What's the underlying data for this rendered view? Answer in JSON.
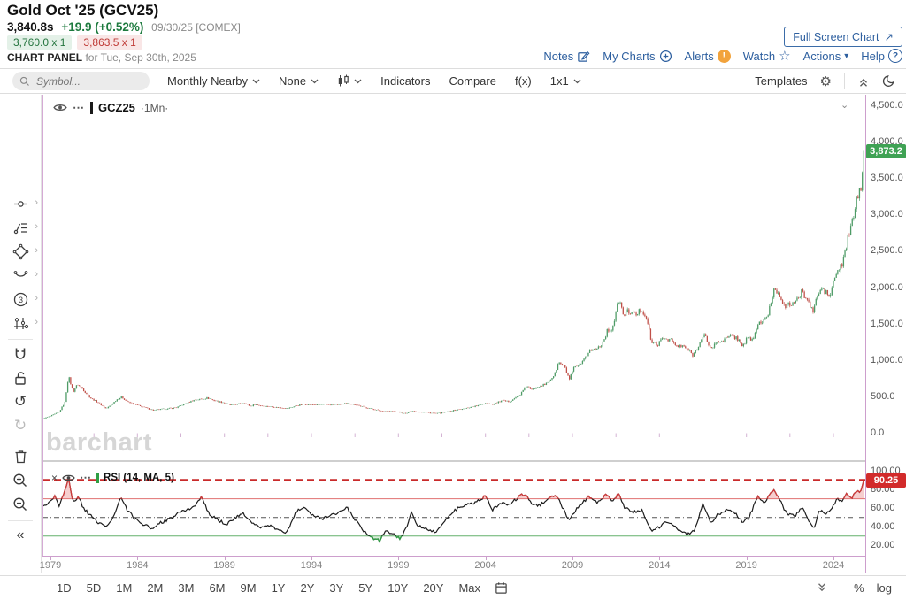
{
  "header": {
    "title": "Gold Oct '25 (GCV25)",
    "last_price": "3,840.8s",
    "change": "+19.9 (+0.52%)",
    "quote_time": "09/30/25 [COMEX]",
    "bid": "3,760.0 x 1",
    "ask": "3,863.5 x 1",
    "panel_label": "CHART PANEL",
    "panel_date": " for Tue, Sep 30th, 2025",
    "full_screen_button": "Full Screen Chart",
    "links": {
      "notes": "Notes",
      "my_charts": "My Charts",
      "alerts": "Alerts",
      "watch": "Watch",
      "actions": "Actions",
      "help": "Help"
    }
  },
  "toolbar": {
    "symbol_placeholder": "Symbol...",
    "frequency": "Monthly Nearby",
    "tools_dropdown": "None",
    "indicators": "Indicators",
    "compare": "Compare",
    "fx": "f(x)",
    "grid": "1x1",
    "templates": "Templates"
  },
  "sidebar": {
    "tools": [
      "trendline",
      "annotation",
      "shapes",
      "arc",
      "wave3",
      "sliders",
      "divider",
      "magnet",
      "unlock",
      "undo",
      "redo",
      "divider",
      "trash",
      "zoom-in",
      "zoom-out",
      "divider",
      "collapse-left"
    ]
  },
  "chart": {
    "legend_symbol": "GCZ25",
    "legend_period": "·1Mn·",
    "watermark": "barchart",
    "price_badge": "3,873.2"
  },
  "rsi": {
    "label": "RSI (14, MA, 5)",
    "badge": "90.25"
  },
  "bottom": {
    "ranges": [
      "1D",
      "5D",
      "1M",
      "2M",
      "3M",
      "6M",
      "9M",
      "1Y",
      "2Y",
      "3Y",
      "5Y",
      "10Y",
      "20Y",
      "Max"
    ],
    "percent": "%",
    "log": "log"
  },
  "icons": {
    "gear": "⚙",
    "star": "☆",
    "caret_down": "▾",
    "arrow_ne": "↗",
    "undo": "↺",
    "redo": "↻",
    "collapse_left": "«",
    "dots": "⋯",
    "close": "×",
    "expand": "›",
    "chevron_small": "⌄",
    "exclaim": "!",
    "question": "?",
    "three": "3"
  },
  "colors": {
    "up": "#4e9b66",
    "down": "#c05049",
    "badge_green": "#3fa254",
    "badge_red": "#d22b2b",
    "accent_blue": "#2d5f9f",
    "alert_orange": "#f2a33c",
    "frame_purple": "#cd9ecd",
    "rsi_line": "#1c1c1c",
    "rsi_overbought": "#d03b3b",
    "rsi_oversold": "#2f9e44"
  },
  "chart_data": [
    {
      "type": "candlestick",
      "name": "GCZ25 1Mn - Gold monthly nearest contract",
      "x_unit": "year",
      "x_range": [
        1978.58,
        2025.75
      ],
      "y_range": [
        0,
        4500
      ],
      "x_ticks": [
        1979,
        1984,
        1989,
        1994,
        1999,
        2004,
        2009,
        2014,
        2019,
        2024
      ],
      "y_ticks": [
        0,
        500,
        1000,
        1500,
        2000,
        2500,
        3000,
        3500,
        4000,
        4500
      ],
      "last_price": 3873.2,
      "keypoints": [
        [
          1978.58,
          195
        ],
        [
          1979.0,
          228
        ],
        [
          1979.5,
          285
        ],
        [
          1979.83,
          420
        ],
        [
          1980.04,
          780
        ],
        [
          1980.3,
          560
        ],
        [
          1980.55,
          665
        ],
        [
          1980.8,
          615
        ],
        [
          1981.05,
          545
        ],
        [
          1981.35,
          470
        ],
        [
          1981.75,
          415
        ],
        [
          1982.2,
          330
        ],
        [
          1982.5,
          385
        ],
        [
          1982.8,
          455
        ],
        [
          1983.1,
          490
        ],
        [
          1983.45,
          420
        ],
        [
          1983.95,
          380
        ],
        [
          1984.45,
          342
        ],
        [
          1984.95,
          308
        ],
        [
          1985.25,
          318
        ],
        [
          1985.75,
          330
        ],
        [
          1986.25,
          346
        ],
        [
          1986.75,
          400
        ],
        [
          1987.25,
          448
        ],
        [
          1987.75,
          462
        ],
        [
          1988.0,
          478
        ],
        [
          1988.45,
          440
        ],
        [
          1988.95,
          415
        ],
        [
          1989.35,
          378
        ],
        [
          1989.85,
          398
        ],
        [
          1990.15,
          410
        ],
        [
          1990.5,
          362
        ],
        [
          1990.75,
          390
        ],
        [
          1991.15,
          366
        ],
        [
          1991.65,
          358
        ],
        [
          1992.15,
          342
        ],
        [
          1992.65,
          334
        ],
        [
          1993.15,
          372
        ],
        [
          1993.6,
          392
        ],
        [
          1994.1,
          382
        ],
        [
          1994.6,
          386
        ],
        [
          1995.1,
          384
        ],
        [
          1995.6,
          388
        ],
        [
          1996.1,
          402
        ],
        [
          1996.55,
          384
        ],
        [
          1997.05,
          348
        ],
        [
          1997.55,
          322
        ],
        [
          1998.05,
          296
        ],
        [
          1998.55,
          292
        ],
        [
          1999.05,
          284
        ],
        [
          1999.4,
          258
        ],
        [
          1999.72,
          302
        ],
        [
          2000.1,
          286
        ],
        [
          2000.6,
          278
        ],
        [
          2001.15,
          262
        ],
        [
          2001.65,
          278
        ],
        [
          2002.15,
          306
        ],
        [
          2002.65,
          322
        ],
        [
          2003.15,
          350
        ],
        [
          2003.65,
          376
        ],
        [
          2003.98,
          408
        ],
        [
          2004.4,
          392
        ],
        [
          2004.95,
          438
        ],
        [
          2005.35,
          428
        ],
        [
          2005.95,
          512
        ],
        [
          2006.38,
          648
        ],
        [
          2006.65,
          582
        ],
        [
          2006.98,
          636
        ],
        [
          2007.45,
          662
        ],
        [
          2007.98,
          800
        ],
        [
          2008.2,
          968
        ],
        [
          2008.55,
          900
        ],
        [
          2008.82,
          732
        ],
        [
          2009.1,
          892
        ],
        [
          2009.5,
          932
        ],
        [
          2009.98,
          1134
        ],
        [
          2010.35,
          1142
        ],
        [
          2010.75,
          1248
        ],
        [
          2010.98,
          1390
        ],
        [
          2011.3,
          1438
        ],
        [
          2011.67,
          1825
        ],
        [
          2011.95,
          1610
        ],
        [
          2012.2,
          1672
        ],
        [
          2012.65,
          1620
        ],
        [
          2012.95,
          1700
        ],
        [
          2013.25,
          1590
        ],
        [
          2013.55,
          1232
        ],
        [
          2013.95,
          1220
        ],
        [
          2014.2,
          1300
        ],
        [
          2014.65,
          1282
        ],
        [
          2014.95,
          1190
        ],
        [
          2015.45,
          1182
        ],
        [
          2015.95,
          1062
        ],
        [
          2016.3,
          1232
        ],
        [
          2016.6,
          1342
        ],
        [
          2016.95,
          1152
        ],
        [
          2017.35,
          1252
        ],
        [
          2017.75,
          1282
        ],
        [
          2018.1,
          1330
        ],
        [
          2018.45,
          1305
        ],
        [
          2018.8,
          1195
        ],
        [
          2019.0,
          1282
        ],
        [
          2019.4,
          1292
        ],
        [
          2019.7,
          1515
        ],
        [
          2019.95,
          1520
        ],
        [
          2020.2,
          1590
        ],
        [
          2020.6,
          1985
        ],
        [
          2020.95,
          1890
        ],
        [
          2021.2,
          1715
        ],
        [
          2021.55,
          1775
        ],
        [
          2021.95,
          1822
        ],
        [
          2022.2,
          1945
        ],
        [
          2022.55,
          1805
        ],
        [
          2022.8,
          1655
        ],
        [
          2023.0,
          1825
        ],
        [
          2023.3,
          1985
        ],
        [
          2023.6,
          1920
        ],
        [
          2023.8,
          1865
        ],
        [
          2023.98,
          2062
        ],
        [
          2024.25,
          2230
        ],
        [
          2024.55,
          2330
        ],
        [
          2024.8,
          2650
        ],
        [
          2025.05,
          2840
        ],
        [
          2025.25,
          3120
        ],
        [
          2025.45,
          3290
        ],
        [
          2025.6,
          3360
        ],
        [
          2025.75,
          3873
        ]
      ]
    },
    {
      "type": "line",
      "name": "RSI (14, MA, 5)",
      "y_range": [
        20,
        100
      ],
      "y_ticks": [
        20,
        40,
        60,
        80,
        100
      ],
      "levels": {
        "current": 90.25,
        "overbought": 70,
        "midline": 50,
        "oversold": 30
      },
      "keypoints": [
        [
          1978.58,
          62
        ],
        [
          1979.0,
          68
        ],
        [
          1979.25,
          73
        ],
        [
          1979.5,
          62
        ],
        [
          1979.83,
          80
        ],
        [
          1980.05,
          91
        ],
        [
          1980.3,
          66
        ],
        [
          1980.6,
          72
        ],
        [
          1980.9,
          60
        ],
        [
          1981.3,
          52
        ],
        [
          1981.8,
          44
        ],
        [
          1982.3,
          40
        ],
        [
          1982.7,
          55
        ],
        [
          1983.05,
          72
        ],
        [
          1983.4,
          58
        ],
        [
          1983.9,
          48
        ],
        [
          1984.4,
          42
        ],
        [
          1984.9,
          38
        ],
        [
          1985.3,
          44
        ],
        [
          1985.8,
          48
        ],
        [
          1986.3,
          54
        ],
        [
          1986.8,
          58
        ],
        [
          1987.3,
          62
        ],
        [
          1987.7,
          73
        ],
        [
          1988.1,
          54
        ],
        [
          1988.6,
          48
        ],
        [
          1989.1,
          42
        ],
        [
          1989.6,
          50
        ],
        [
          1990.1,
          54
        ],
        [
          1990.6,
          44
        ],
        [
          1991.1,
          40
        ],
        [
          1991.6,
          42
        ],
        [
          1992.1,
          36
        ],
        [
          1992.6,
          34
        ],
        [
          1993.1,
          56
        ],
        [
          1993.6,
          62
        ],
        [
          1994.1,
          52
        ],
        [
          1994.6,
          48
        ],
        [
          1995.1,
          52
        ],
        [
          1995.6,
          56
        ],
        [
          1996.05,
          60
        ],
        [
          1996.5,
          48
        ],
        [
          1997.0,
          36
        ],
        [
          1997.5,
          28
        ],
        [
          1997.9,
          25
        ],
        [
          1998.3,
          36
        ],
        [
          1998.7,
          32
        ],
        [
          1999.1,
          27
        ],
        [
          1999.5,
          42
        ],
        [
          1999.75,
          55
        ],
        [
          2000.1,
          42
        ],
        [
          2000.6,
          38
        ],
        [
          2001.1,
          34
        ],
        [
          2001.6,
          44
        ],
        [
          2002.1,
          56
        ],
        [
          2002.6,
          62
        ],
        [
          2003.1,
          64
        ],
        [
          2003.6,
          68
        ],
        [
          2004.0,
          73
        ],
        [
          2004.4,
          58
        ],
        [
          2004.9,
          66
        ],
        [
          2005.4,
          64
        ],
        [
          2005.9,
          72
        ],
        [
          2006.3,
          76
        ],
        [
          2006.7,
          62
        ],
        [
          2007.2,
          64
        ],
        [
          2007.7,
          72
        ],
        [
          2008.1,
          74
        ],
        [
          2008.5,
          58
        ],
        [
          2008.8,
          46
        ],
        [
          2009.2,
          58
        ],
        [
          2009.6,
          66
        ],
        [
          2009.95,
          73
        ],
        [
          2010.4,
          66
        ],
        [
          2010.9,
          74
        ],
        [
          2011.3,
          68
        ],
        [
          2011.65,
          76
        ],
        [
          2012.0,
          60
        ],
        [
          2012.5,
          56
        ],
        [
          2013.0,
          58
        ],
        [
          2013.5,
          36
        ],
        [
          2014.0,
          40
        ],
        [
          2014.5,
          46
        ],
        [
          2015.0,
          38
        ],
        [
          2015.6,
          32
        ],
        [
          2016.0,
          36
        ],
        [
          2016.5,
          64
        ],
        [
          2016.95,
          44
        ],
        [
          2017.4,
          54
        ],
        [
          2017.9,
          58
        ],
        [
          2018.4,
          54
        ],
        [
          2018.8,
          44
        ],
        [
          2019.2,
          52
        ],
        [
          2019.65,
          74
        ],
        [
          2020.0,
          66
        ],
        [
          2020.55,
          79
        ],
        [
          2020.95,
          68
        ],
        [
          2021.3,
          54
        ],
        [
          2021.8,
          52
        ],
        [
          2022.2,
          62
        ],
        [
          2022.6,
          46
        ],
        [
          2022.9,
          39
        ],
        [
          2023.2,
          58
        ],
        [
          2023.6,
          54
        ],
        [
          2023.9,
          60
        ],
        [
          2024.2,
          70
        ],
        [
          2024.5,
          67
        ],
        [
          2024.8,
          76
        ],
        [
          2025.05,
          71
        ],
        [
          2025.3,
          79
        ],
        [
          2025.55,
          76
        ],
        [
          2025.75,
          90.25
        ]
      ]
    }
  ]
}
